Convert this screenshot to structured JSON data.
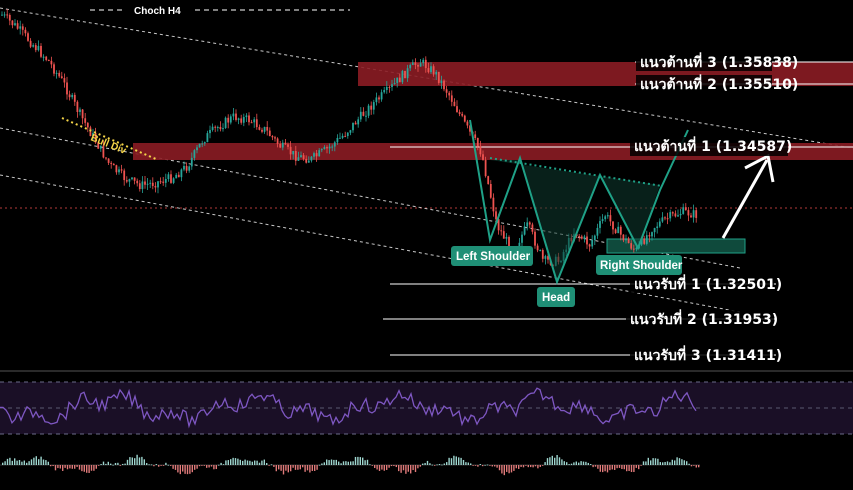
{
  "chart_data": {
    "type": "candlestick",
    "title": "Choch H4",
    "annotations": {
      "divergence": "Bull Div",
      "pattern_labels": [
        "Left Shoulder",
        "Head",
        "Right Shoulder"
      ]
    },
    "resistance_levels": [
      {
        "label": "แนวต้านที่ 3 (1.35838)",
        "value": 1.35838
      },
      {
        "label": "แนวต้านที่ 2 (1.35510)",
        "value": 1.3551
      },
      {
        "label": "แนวต้านที่ 1 (1.34587)",
        "value": 1.34587
      }
    ],
    "support_levels": [
      {
        "label": "แนวรับที่ 1 (1.32501)",
        "value": 1.32501
      },
      {
        "label": "แนวรับที่ 2 (1.31953)",
        "value": 1.31953
      },
      {
        "label": "แนวรับที่ 3 (1.31411)",
        "value": 1.31411
      }
    ],
    "price_path": [
      1.366,
      1.364,
      1.3615,
      1.359,
      1.3555,
      1.351,
      1.347,
      1.343,
      1.341,
      1.34,
      1.3405,
      1.3412,
      1.343,
      1.347,
      1.349,
      1.3505,
      1.35,
      1.3485,
      1.346,
      1.3445,
      1.344,
      1.3455,
      1.3475,
      1.35,
      1.3525,
      1.3545,
      1.357,
      1.359,
      1.3572,
      1.3535,
      1.349,
      1.345,
      1.334,
      1.33,
      1.334,
      1.3285,
      1.3285,
      1.333,
      1.331,
      1.3355,
      1.3325,
      1.33,
      1.3335,
      1.335,
      1.336,
      1.3355
    ],
    "colors": {
      "bull": "#26a69a",
      "bear": "#ef5350",
      "zone": "#8b1c24",
      "pattern": "#1fa187",
      "oscillator": "#7e57c2",
      "div": "#f5d547"
    }
  }
}
